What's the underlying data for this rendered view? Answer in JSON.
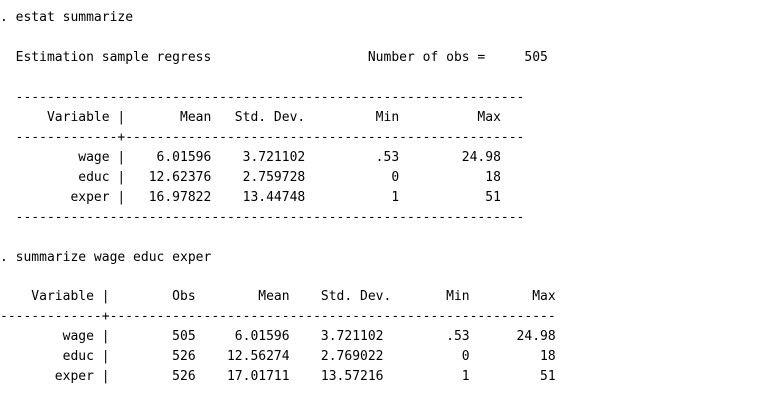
{
  "console": {
    "lines": [
      ". estat summarize",
      "  Estimation sample regress                    Number of obs =     505",
      "  -----------------------------------------------------------------",
      "      Variable |       Mean   Std. Dev.         Min          Max",
      "  -------------+---------------------------------------------------",
      "          wage |    6.01596    3.721102         .53        24.98",
      "          educ |   12.62376    2.759728           0           18",
      "         exper |   16.97822    13.44748           1           51",
      "  -----------------------------------------------------------------",
      ". summarize wage educ exper",
      "    Variable |        Obs        Mean    Std. Dev.       Min        Max",
      "-------------+---------------------------------------------------------",
      "        wage |        505     6.01596    3.721102        .53      24.98",
      "        educ |        526    12.56274    2.769022          0         18",
      "       exper |        526    17.01711    13.57216          1         51"
    ]
  }
}
